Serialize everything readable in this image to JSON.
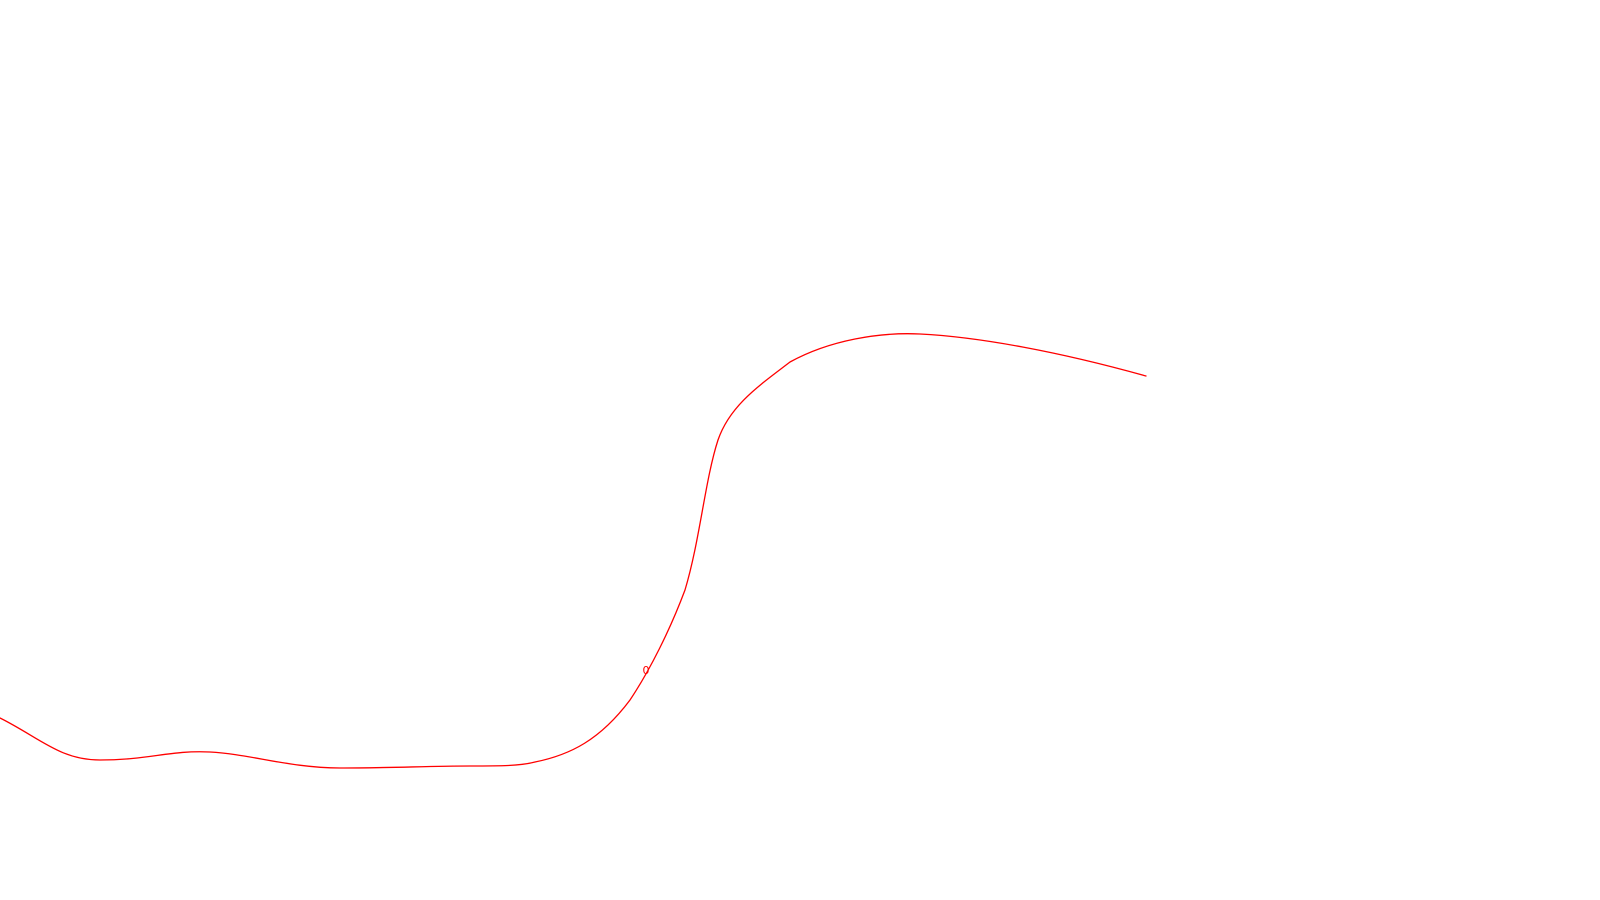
{
  "canvas": {
    "background": "#ffffff",
    "stroke_color": "#ff0000"
  },
  "marker": {
    "label": "0"
  }
}
